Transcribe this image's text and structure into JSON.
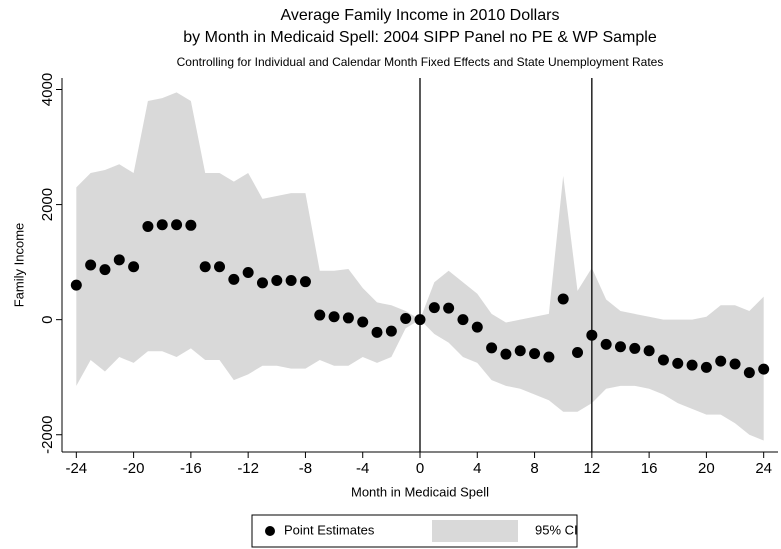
{
  "chart_data": {
    "type": "scatter",
    "title": "Average Family Income in 2010 Dollars",
    "title_line2": "by Month in Medicaid Spell: 2004 SIPP Panel no PE & WP Sample",
    "subtitle": "Controlling for Individual and Calendar Month Fixed Effects and State Unemployment Rates",
    "x_label": "Month in Medicaid Spell",
    "y_label": "Family Income",
    "x": [
      -24,
      -23,
      -22,
      -21,
      -20,
      -19,
      -18,
      -17,
      -16,
      -15,
      -14,
      -13,
      -12,
      -11,
      -10,
      -9,
      -8,
      -7,
      -6,
      -5,
      -4,
      -3,
      -2,
      -1,
      0,
      1,
      2,
      3,
      4,
      5,
      6,
      7,
      8,
      9,
      10,
      11,
      12,
      13,
      14,
      15,
      16,
      17,
      18,
      19,
      20,
      21,
      22,
      23,
      24
    ],
    "series": [
      {
        "name": "Point Estimates",
        "color": "#000000",
        "values": [
          600,
          950,
          870,
          1040,
          920,
          1620,
          1650,
          1650,
          1640,
          920,
          920,
          700,
          820,
          640,
          680,
          680,
          660,
          80,
          50,
          30,
          -40,
          -220,
          -200,
          20,
          0,
          210,
          200,
          0,
          -130,
          -490,
          -600,
          -540,
          -590,
          -650,
          360,
          -570,
          -270,
          -430,
          -470,
          -500,
          -540,
          -700,
          -760,
          -790,
          -830,
          -720,
          -770,
          -920,
          -860
        ]
      }
    ],
    "band": {
      "name": "95% CI",
      "color": "#d9d9d9",
      "upper": [
        2300,
        2550,
        2600,
        2700,
        2550,
        3800,
        3850,
        3950,
        3800,
        2550,
        2550,
        2400,
        2550,
        2100,
        2150,
        2200,
        2200,
        850,
        850,
        880,
        550,
        300,
        250,
        150,
        0,
        650,
        850,
        650,
        450,
        100,
        -50,
        0,
        50,
        100,
        2500,
        500,
        900,
        350,
        150,
        100,
        50,
        0,
        0,
        0,
        50,
        250,
        250,
        150,
        400
      ],
      "lower": [
        -1150,
        -700,
        -900,
        -650,
        -750,
        -550,
        -550,
        -650,
        -500,
        -700,
        -700,
        -1050,
        -950,
        -800,
        -800,
        -850,
        -850,
        -700,
        -800,
        -800,
        -650,
        -750,
        -650,
        -150,
        0,
        -250,
        -400,
        -650,
        -750,
        -1050,
        -1150,
        -1200,
        -1300,
        -1400,
        -1600,
        -1600,
        -1450,
        -1200,
        -1150,
        -1150,
        -1200,
        -1300,
        -1450,
        -1550,
        -1650,
        -1650,
        -1800,
        -2000,
        -2100
      ]
    },
    "vlines": [
      0,
      12
    ],
    "xlim": [
      -25,
      25
    ],
    "ylim": [
      -2300,
      4200
    ],
    "xticks": [
      -24,
      -20,
      -16,
      -12,
      -8,
      -4,
      0,
      4,
      8,
      12,
      16,
      20,
      24
    ],
    "yticks": [
      -2000,
      0,
      2000,
      4000
    ]
  }
}
